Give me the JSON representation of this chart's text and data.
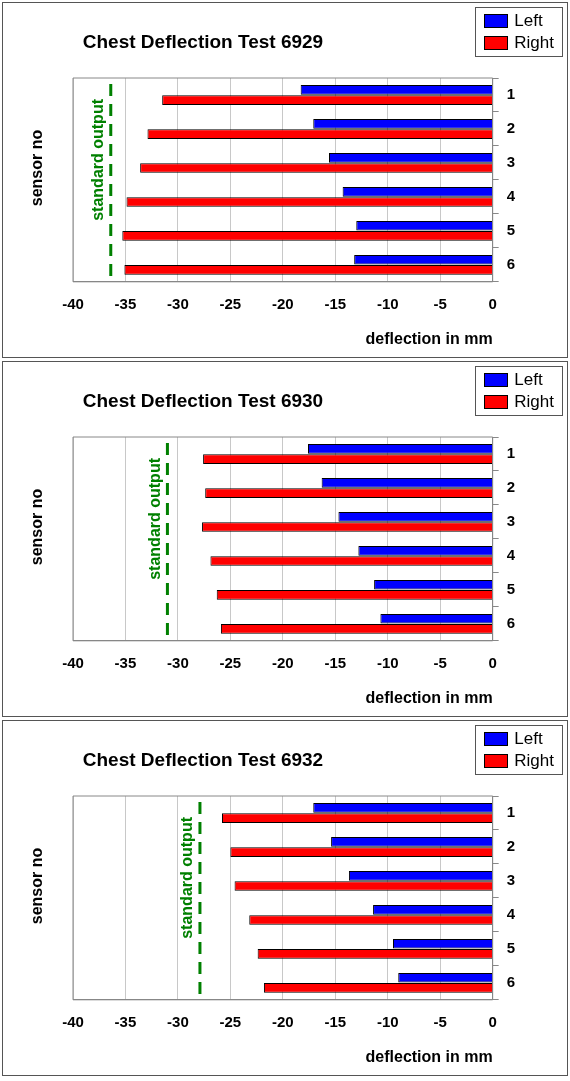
{
  "chart_data": [
    {
      "type": "bar",
      "orientation": "horizontal",
      "title": "Chest Deflection Test 6929",
      "xlabel": "deflection in mm",
      "ylabel": "sensor no",
      "categories": [
        "1",
        "2",
        "3",
        "4",
        "5",
        "6"
      ],
      "series": [
        {
          "name": "Left",
          "color": "#0000ff",
          "values": [
            -18.3,
            -17.1,
            -15.6,
            -14.3,
            -13.0,
            -13.2
          ]
        },
        {
          "name": "Right",
          "color": "#ff0000",
          "values": [
            -31.5,
            -32.9,
            -33.6,
            -34.9,
            -35.3,
            -35.1
          ]
        }
      ],
      "xlim": [
        -40,
        0
      ],
      "xticks": [
        -40,
        -35,
        -30,
        -25,
        -20,
        -15,
        -10,
        -5,
        0
      ],
      "grid": "x",
      "legend": "top right",
      "ref_lines": [
        {
          "axis": "x",
          "value": -36.4,
          "label": "standard output",
          "color": "#008000",
          "line_style": "dashed"
        }
      ]
    },
    {
      "type": "bar",
      "orientation": "horizontal",
      "title": "Chest Deflection Test 6930",
      "xlabel": "deflection in mm",
      "ylabel": "sensor no",
      "categories": [
        "1",
        "2",
        "3",
        "4",
        "5",
        "6"
      ],
      "series": [
        {
          "name": "Left",
          "color": "#0000ff",
          "values": [
            -17.6,
            -16.3,
            -14.7,
            -12.8,
            -11.3,
            -10.7
          ]
        },
        {
          "name": "Right",
          "color": "#ff0000",
          "values": [
            -27.6,
            -27.4,
            -27.7,
            -26.9,
            -26.3,
            -25.9
          ]
        }
      ],
      "xlim": [
        -40,
        0
      ],
      "xticks": [
        -40,
        -35,
        -30,
        -25,
        -20,
        -15,
        -10,
        -5,
        0
      ],
      "grid": "x",
      "legend": "top right",
      "ref_lines": [
        {
          "axis": "x",
          "value": -31.0,
          "label": "standard output",
          "color": "#008000",
          "line_style": "dashed"
        }
      ]
    },
    {
      "type": "bar",
      "orientation": "horizontal",
      "title": "Chest Deflection Test 6932",
      "xlabel": "deflection in mm",
      "ylabel": "sensor no",
      "categories": [
        "1",
        "2",
        "3",
        "4",
        "5",
        "6"
      ],
      "series": [
        {
          "name": "Left",
          "color": "#0000ff",
          "values": [
            -17.1,
            -15.4,
            -13.7,
            -11.4,
            -9.5,
            -9.0
          ]
        },
        {
          "name": "Right",
          "color": "#ff0000",
          "values": [
            -25.8,
            -25.0,
            -24.6,
            -23.2,
            -22.4,
            -21.8
          ]
        }
      ],
      "xlim": [
        -40,
        0
      ],
      "xticks": [
        -40,
        -35,
        -30,
        -25,
        -20,
        -15,
        -10,
        -5,
        0
      ],
      "grid": "x",
      "legend": "top right",
      "ref_lines": [
        {
          "axis": "x",
          "value": -27.9,
          "label": "standard output",
          "color": "#008000",
          "line_style": "dashed"
        }
      ]
    }
  ]
}
